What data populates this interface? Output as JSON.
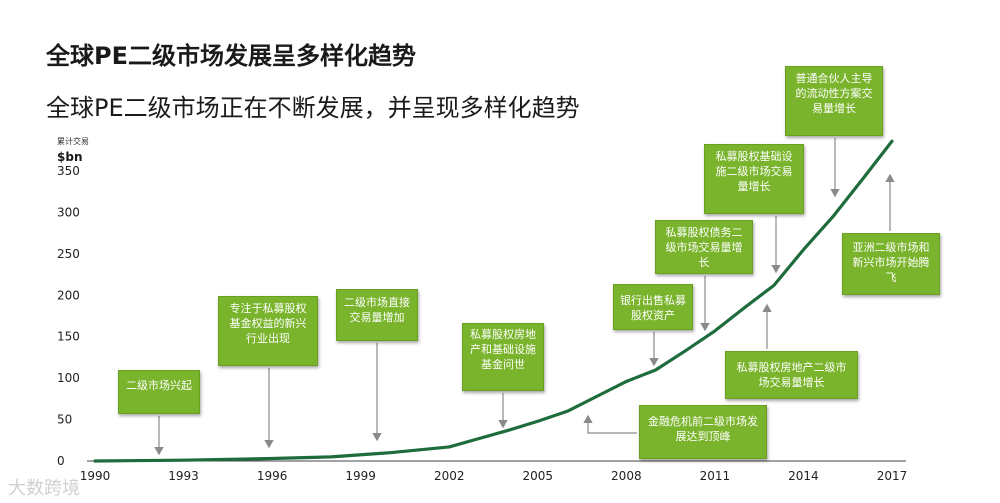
{
  "title": "全球PE二级市场发展呈多样化趋势",
  "subtitle": "全球PE二级市场正在不断发展，并呈现多样化趋势",
  "unit_small": "累计交易",
  "unit": "$bn",
  "watermark": "大数跨境",
  "colors": {
    "line": "#1e6b3c",
    "note_bg": "#7ab42c",
    "arrow": "#8a8a8a"
  },
  "chart_data": {
    "type": "line",
    "x_ticks": [
      "1990",
      "1993",
      "1996",
      "1999",
      "2002",
      "2005",
      "2008",
      "2011",
      "2014",
      "2017"
    ],
    "y_ticks": [
      0,
      50,
      100,
      150,
      200,
      250,
      300,
      350
    ],
    "ylim": [
      0,
      350
    ],
    "xlim": [
      1990,
      2017
    ],
    "ylabel": "$bn",
    "series": [
      {
        "x": [
          1990,
          1993,
          1996,
          1998,
          2000,
          2002,
          2003,
          2004,
          2005,
          2006,
          2007,
          2008,
          2009,
          2010,
          2011,
          2012,
          2013,
          2014,
          2015,
          2016,
          2017
        ],
        "y": [
          0,
          1,
          3,
          5,
          10,
          17,
          27,
          37,
          48,
          60,
          78,
          96,
          110,
          133,
          157,
          185,
          212,
          255,
          295,
          340,
          386
        ]
      }
    ],
    "annotations": [
      "二级市场兴起",
      "专注于私募股权基金权益的新兴行业出现",
      "二级市场直接交易量增加",
      "私募股权房地产和基础设施基金问世",
      "银行出售私募股权资产",
      "私募股权债务二级市场交易量增长",
      "私募股权基础设施二级市场交易量增长",
      "普通合伙人主导的流动性方案交易量增长",
      "亚洲二级市场和新兴市场开始腾飞",
      "私募股权房地产二级市场交易量增长",
      "金融危机前二级市场发展达到顶峰"
    ]
  }
}
